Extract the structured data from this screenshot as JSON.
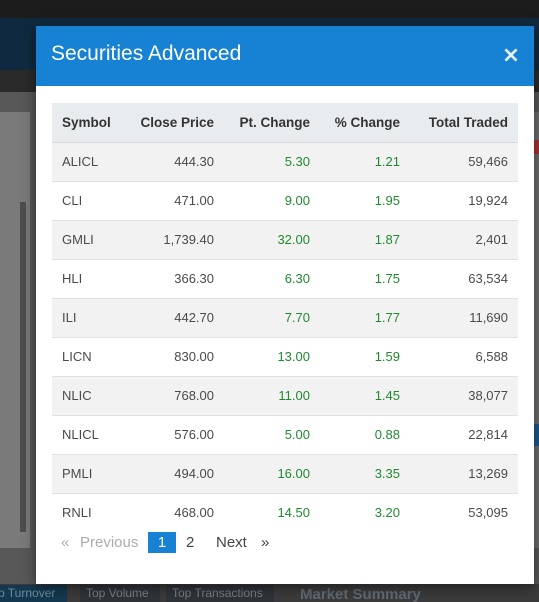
{
  "background": {
    "bottom_tabs": [
      "p Turnover",
      "Top Volume",
      "Top Transactions"
    ],
    "market_summary_label": "Market Summary"
  },
  "modal": {
    "title": "Securities Advanced",
    "close_label": "×"
  },
  "table": {
    "columns": [
      "Symbol",
      "Close Price",
      "Pt. Change",
      "% Change",
      "Total Traded"
    ],
    "rows": [
      [
        "ALICL",
        "444.30",
        "5.30",
        "1.21",
        "59,466"
      ],
      [
        "CLI",
        "471.00",
        "9.00",
        "1.95",
        "19,924"
      ],
      [
        "GMLI",
        "1,739.40",
        "32.00",
        "1.87",
        "2,401"
      ],
      [
        "HLI",
        "366.30",
        "6.30",
        "1.75",
        "63,534"
      ],
      [
        "ILI",
        "442.70",
        "7.70",
        "1.77",
        "11,690"
      ],
      [
        "LICN",
        "830.00",
        "13.00",
        "1.59",
        "6,588"
      ],
      [
        "NLIC",
        "768.00",
        "11.00",
        "1.45",
        "38,077"
      ],
      [
        "NLICL",
        "576.00",
        "5.00",
        "0.88",
        "22,814"
      ],
      [
        "PMLI",
        "494.00",
        "16.00",
        "3.35",
        "13,269"
      ],
      [
        "RNLI",
        "468.00",
        "14.50",
        "3.20",
        "53,095"
      ]
    ]
  },
  "pagination": {
    "first": "«",
    "previous": "Previous",
    "pages": [
      "1",
      "2"
    ],
    "current_page": "1",
    "next": "Next",
    "last": "»"
  },
  "colors": {
    "header_blue": "#1782d4",
    "positive_green": "#1f8a2e",
    "table_header_bg": "#e9ecef",
    "stripe_bg": "#f2f2f2"
  }
}
